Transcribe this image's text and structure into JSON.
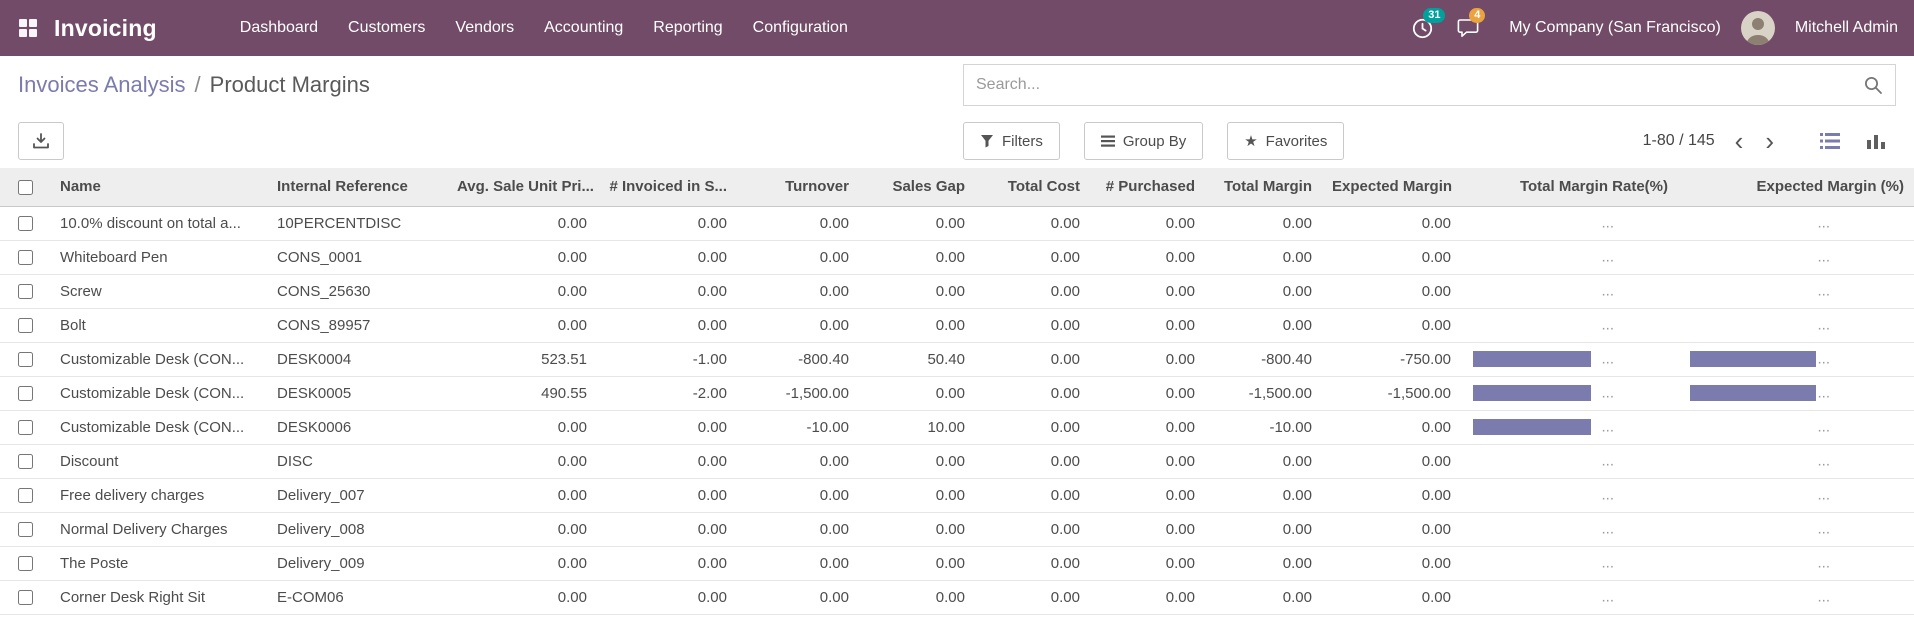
{
  "nav": {
    "app_name": "Invoicing",
    "menus": [
      "Dashboard",
      "Customers",
      "Vendors",
      "Accounting",
      "Reporting",
      "Configuration"
    ],
    "activity_count": "31",
    "message_count": "4",
    "company": "My Company (San Francisco)",
    "user": "Mitchell Admin"
  },
  "breadcrumb": {
    "parent": "Invoices Analysis",
    "separator": "/",
    "current": "Product Margins"
  },
  "search": {
    "placeholder": "Search..."
  },
  "controls": {
    "filters_label": "Filters",
    "group_by_label": "Group By",
    "favorites_label": "Favorites",
    "favorites_star": "★",
    "pager_text": "1-80 / 145",
    "pager_prev": "‹",
    "pager_next": "›"
  },
  "colors": {
    "nav_bg": "#714B67",
    "accent": "#7c7bad",
    "activity_badge_bg": "#00A09D",
    "message_badge_bg": "#EAA33F",
    "bar_fill": "#7c7bad"
  },
  "table": {
    "ellipsis": "...",
    "headers": [
      "Name",
      "Internal Reference",
      "Avg. Sale Unit Pri...",
      "# Invoiced in S...",
      "Turnover",
      "Sales Gap",
      "Total Cost",
      "# Purchased",
      "Total Margin",
      "Expected Margin",
      "Total Margin Rate(%)",
      "Expected Margin (%)"
    ],
    "rows": [
      {
        "name": "10.0% discount on total a...",
        "ref": "10PERCENTDISC",
        "values": [
          "0.00",
          "0.00",
          "0.00",
          "0.00",
          "0.00",
          "0.00",
          "0.00",
          "0.00"
        ],
        "tmr_bar": 0,
        "em_bar": 0
      },
      {
        "name": "Whiteboard Pen",
        "ref": "CONS_0001",
        "values": [
          "0.00",
          "0.00",
          "0.00",
          "0.00",
          "0.00",
          "0.00",
          "0.00",
          "0.00"
        ],
        "tmr_bar": 0,
        "em_bar": 0
      },
      {
        "name": "Screw",
        "ref": "CONS_25630",
        "values": [
          "0.00",
          "0.00",
          "0.00",
          "0.00",
          "0.00",
          "0.00",
          "0.00",
          "0.00"
        ],
        "tmr_bar": 0,
        "em_bar": 0
      },
      {
        "name": "Bolt",
        "ref": "CONS_89957",
        "values": [
          "0.00",
          "0.00",
          "0.00",
          "0.00",
          "0.00",
          "0.00",
          "0.00",
          "0.00"
        ],
        "tmr_bar": 0,
        "em_bar": 0
      },
      {
        "name": "Customizable Desk (CON...",
        "ref": "DESK0004",
        "values": [
          "523.51",
          "-1.00",
          "-800.40",
          "50.40",
          "0.00",
          "0.00",
          "-800.40",
          "-750.00"
        ],
        "tmr_bar": 118,
        "em_bar": 126
      },
      {
        "name": "Customizable Desk (CON...",
        "ref": "DESK0005",
        "values": [
          "490.55",
          "-2.00",
          "-1,500.00",
          "0.00",
          "0.00",
          "0.00",
          "-1,500.00",
          "-1,500.00"
        ],
        "tmr_bar": 118,
        "em_bar": 126
      },
      {
        "name": "Customizable Desk (CON...",
        "ref": "DESK0006",
        "values": [
          "0.00",
          "0.00",
          "-10.00",
          "10.00",
          "0.00",
          "0.00",
          "-10.00",
          "0.00"
        ],
        "tmr_bar": 118,
        "em_bar": 0
      },
      {
        "name": "Discount",
        "ref": "DISC",
        "values": [
          "0.00",
          "0.00",
          "0.00",
          "0.00",
          "0.00",
          "0.00",
          "0.00",
          "0.00"
        ],
        "tmr_bar": 0,
        "em_bar": 0
      },
      {
        "name": "Free delivery charges",
        "ref": "Delivery_007",
        "values": [
          "0.00",
          "0.00",
          "0.00",
          "0.00",
          "0.00",
          "0.00",
          "0.00",
          "0.00"
        ],
        "tmr_bar": 0,
        "em_bar": 0
      },
      {
        "name": "Normal Delivery Charges",
        "ref": "Delivery_008",
        "values": [
          "0.00",
          "0.00",
          "0.00",
          "0.00",
          "0.00",
          "0.00",
          "0.00",
          "0.00"
        ],
        "tmr_bar": 0,
        "em_bar": 0
      },
      {
        "name": "The Poste",
        "ref": "Delivery_009",
        "values": [
          "0.00",
          "0.00",
          "0.00",
          "0.00",
          "0.00",
          "0.00",
          "0.00",
          "0.00"
        ],
        "tmr_bar": 0,
        "em_bar": 0
      },
      {
        "name": "Corner Desk Right Sit",
        "ref": "E-COM06",
        "values": [
          "0.00",
          "0.00",
          "0.00",
          "0.00",
          "0.00",
          "0.00",
          "0.00",
          "0.00"
        ],
        "tmr_bar": 0,
        "em_bar": 0
      }
    ]
  }
}
